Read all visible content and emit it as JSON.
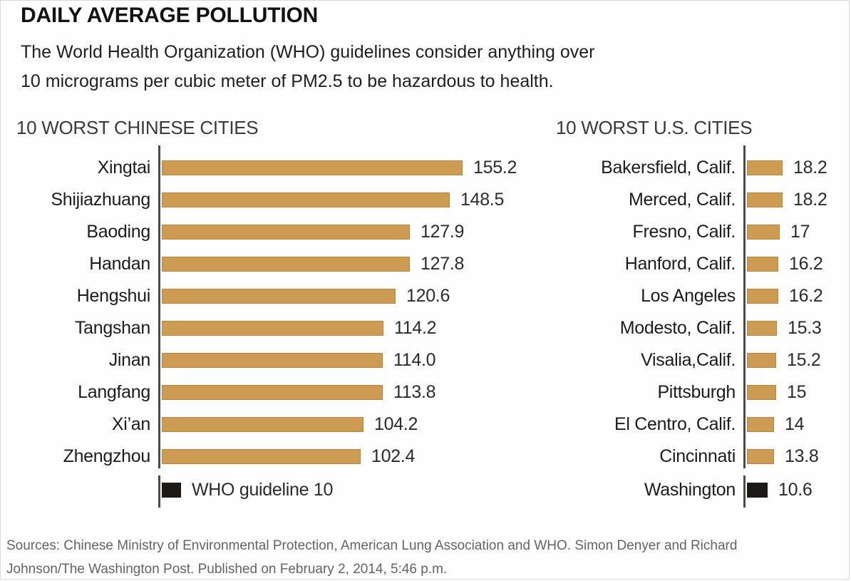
{
  "page": {
    "title": "DAILY AVERAGE POLLUTION",
    "subtitle_line1": "The World Health Organization (WHO) guidelines consider anything over",
    "subtitle_line2": "10 micrograms per cubic meter of PM2.5 to be hazardous to health.",
    "footer_line1": "Sources: Chinese Ministry of Environmental Protection, American Lung Association and WHO. Simon Denyer and Richard",
    "footer_line2": "Johnson/The Washington Post. Published on February 2, 2014, 5:46 p.m."
  },
  "colors": {
    "bar": "#CE9B52",
    "highlight_bar": "#1D1A16",
    "axis": "#4A4A4A",
    "title_text": "#121212",
    "footer_text": "#63636C"
  },
  "chart_data": {
    "type": "bar",
    "orientation": "horizontal",
    "value_unit": "micrograms of PM2.5 per cubic meter",
    "who_guideline_value": 10,
    "charts": [
      {
        "title": "10 WORST CHINESE CITIES",
        "rows": [
          {
            "label": "Xingtai",
            "value": 155.2,
            "display": "155.2"
          },
          {
            "label": "Shijiazhuang",
            "value": 148.5,
            "display": "148.5"
          },
          {
            "label": "Baoding",
            "value": 127.9,
            "display": "127.9"
          },
          {
            "label": "Handan",
            "value": 127.8,
            "display": "127.8"
          },
          {
            "label": "Hengshui",
            "value": 120.6,
            "display": "120.6"
          },
          {
            "label": "Tangshan",
            "value": 114.2,
            "display": "114.2"
          },
          {
            "label": "Jinan",
            "value": 114.0,
            "display": "114.0"
          },
          {
            "label": "Langfang",
            "value": 113.8,
            "display": "113.8"
          },
          {
            "label": "Xi’an",
            "value": 104.2,
            "display": "104.2"
          },
          {
            "label": "Zhengzhou",
            "value": 102.4,
            "display": "102.4"
          }
        ],
        "extra_row": {
          "label": "",
          "value": 10,
          "display": "WHO guideline 10",
          "highlight": true
        }
      },
      {
        "title": "10 WORST U.S. CITIES",
        "rows": [
          {
            "label": "Bakersfield, Calif.",
            "value": 18.2,
            "display": "18.2"
          },
          {
            "label": "Merced, Calif.",
            "value": 18.2,
            "display": "18.2"
          },
          {
            "label": "Fresno, Calif.",
            "value": 17,
            "display": "17"
          },
          {
            "label": "Hanford, Calif.",
            "value": 16.2,
            "display": "16.2"
          },
          {
            "label": "Los Angeles",
            "value": 16.2,
            "display": "16.2"
          },
          {
            "label": "Modesto, Calif.",
            "value": 15.3,
            "display": "15.3"
          },
          {
            "label": "Visalia,Calif.",
            "value": 15.2,
            "display": "15.2"
          },
          {
            "label": "Pittsburgh",
            "value": 15,
            "display": "15"
          },
          {
            "label": "El Centro, Calif.",
            "value": 14,
            "display": "14"
          },
          {
            "label": "Cincinnati",
            "value": 13.8,
            "display": "13.8"
          }
        ],
        "extra_row": {
          "label": "Washington",
          "value": 10.6,
          "display": "10.6",
          "highlight": true
        }
      }
    ]
  }
}
